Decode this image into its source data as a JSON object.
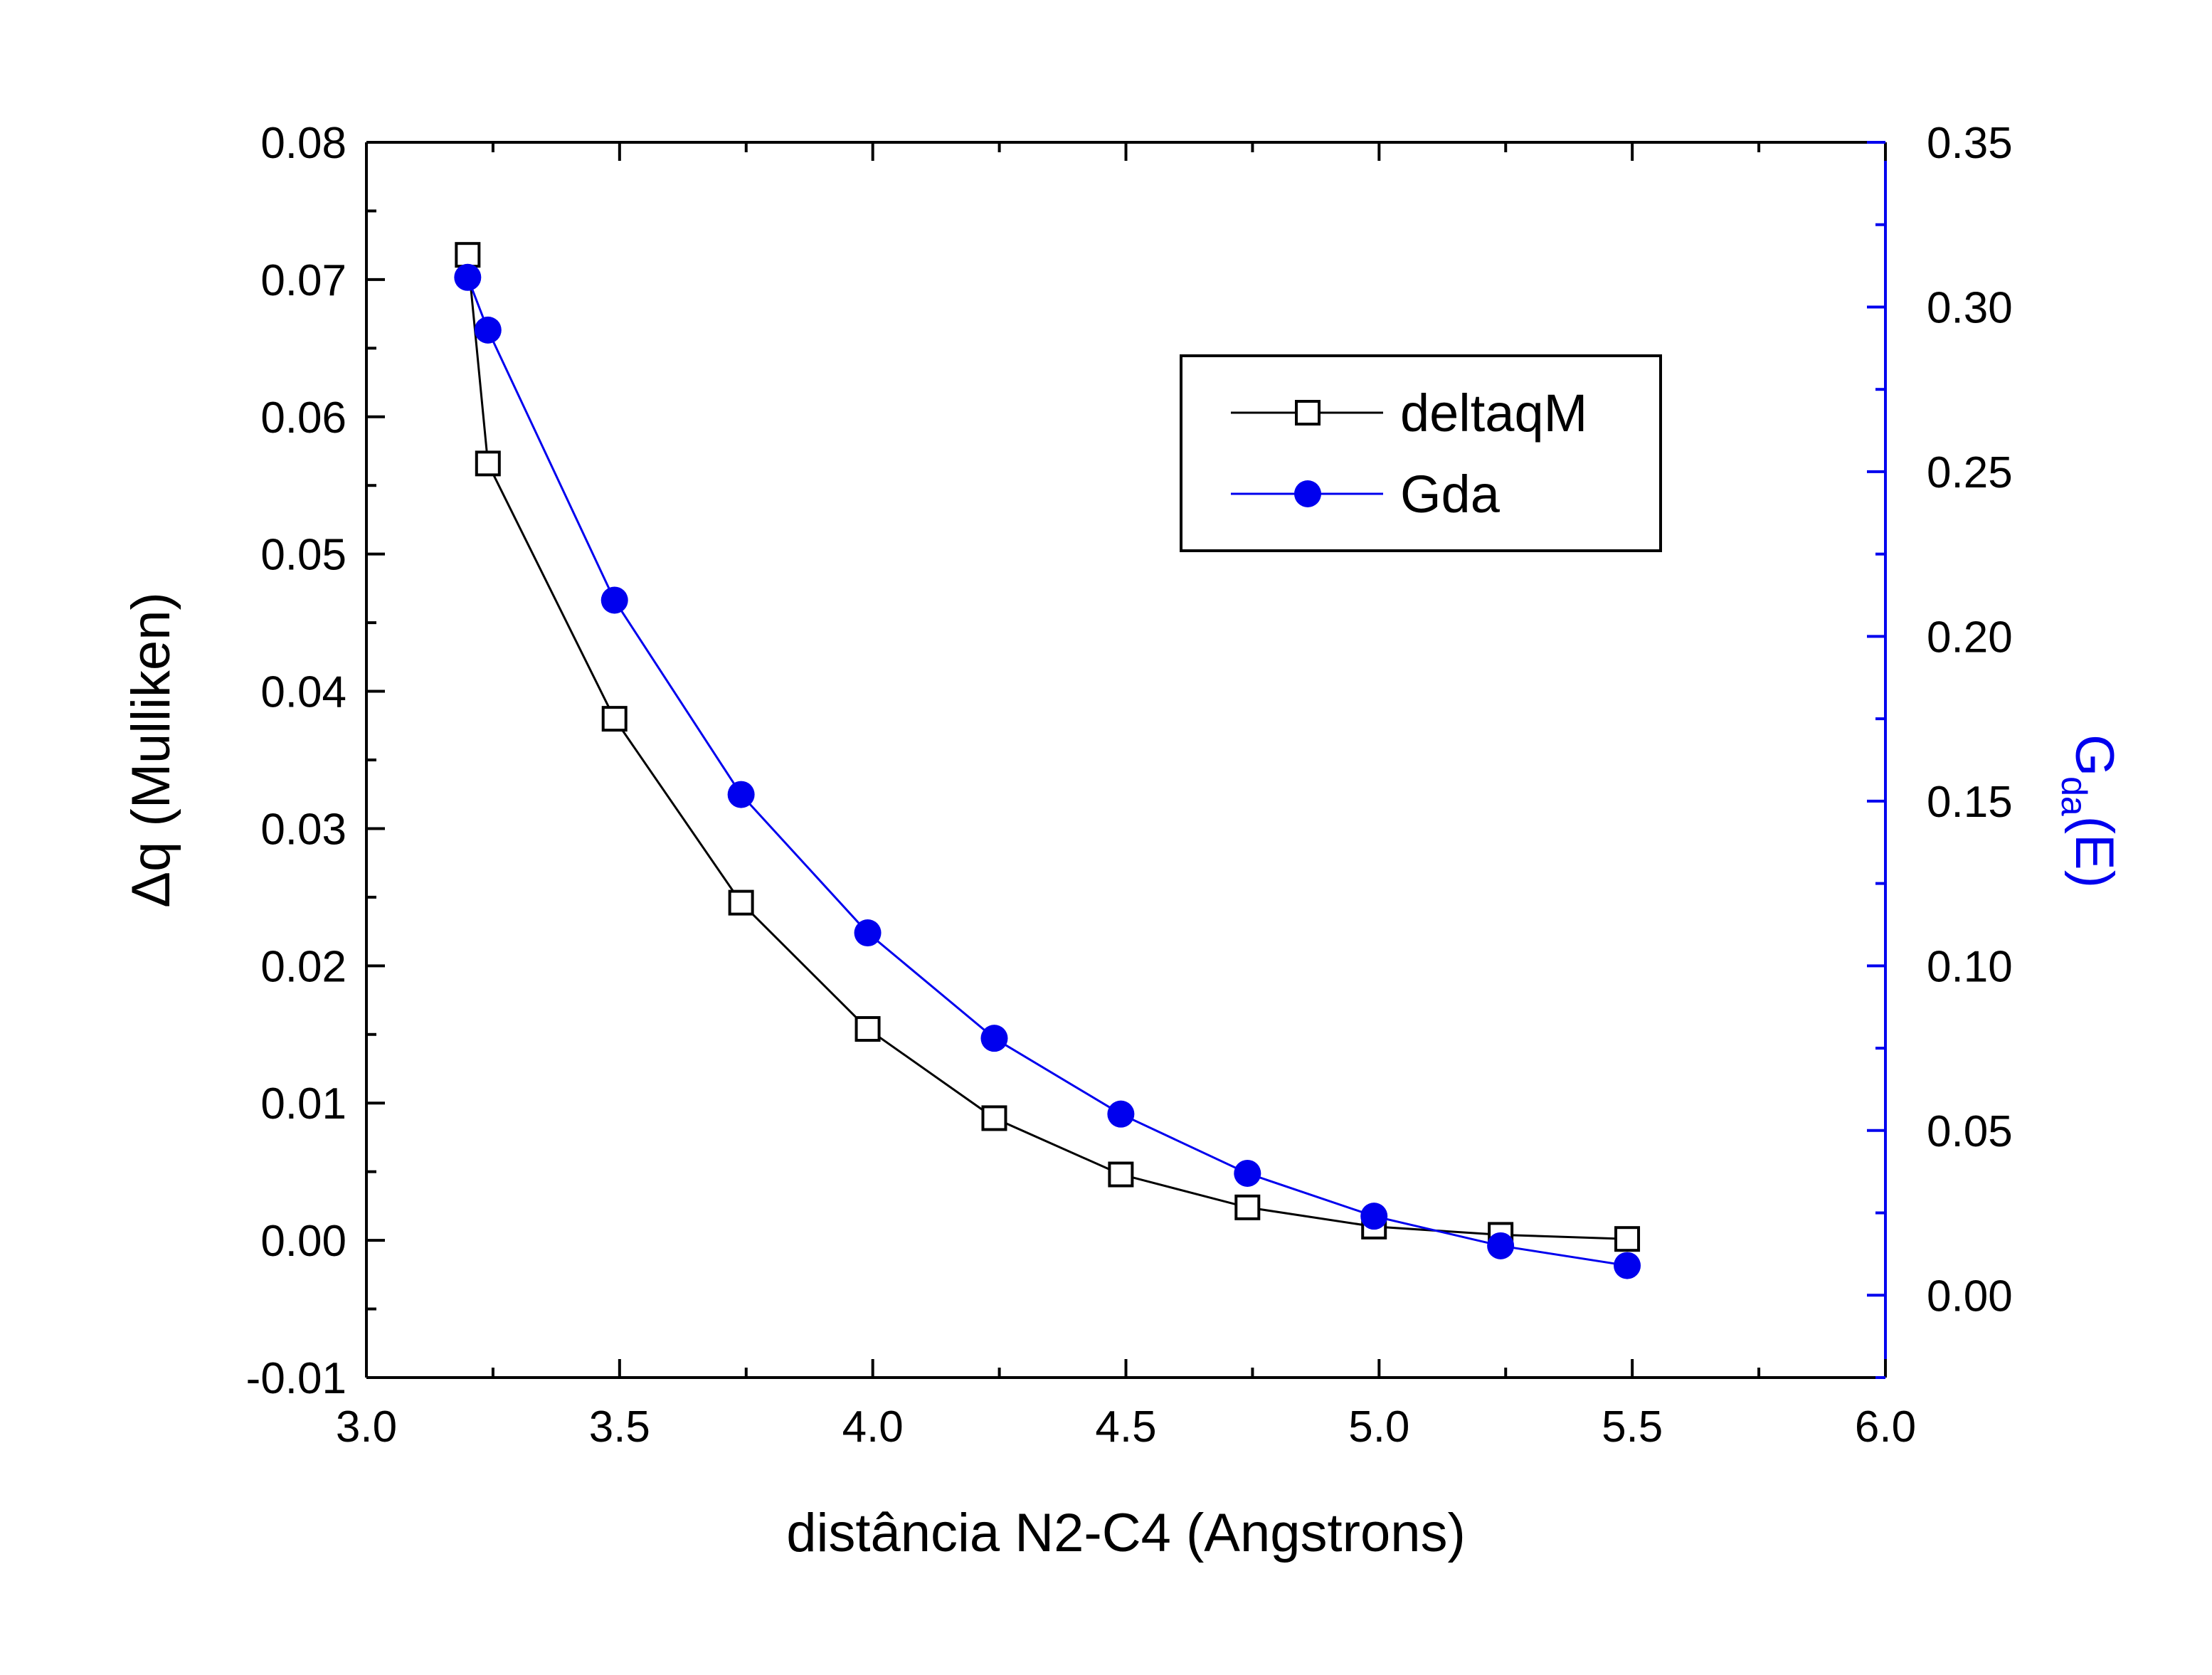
{
  "chart_data": {
    "type": "line",
    "xlabel": "distância N2-C4 (Angstrons)",
    "ylabel_left": "Δq (Mulliken)",
    "ylabel_right": {
      "main": "G",
      "sub": "da",
      "suffix": "(E)"
    },
    "xlim": [
      3.0,
      6.0
    ],
    "ylim_left": [
      -0.01,
      0.08
    ],
    "ylim_right": [
      -0.025,
      0.35
    ],
    "xticks": [
      "3.0",
      "3.5",
      "4.0",
      "4.5",
      "5.0",
      "5.5",
      "6.0"
    ],
    "yticks_left": [
      "-0.01",
      "0.00",
      "0.01",
      "0.02",
      "0.03",
      "0.04",
      "0.05",
      "0.06",
      "0.07",
      "0.08"
    ],
    "yticks_right": [
      "0.00",
      "0.05",
      "0.10",
      "0.15",
      "0.20",
      "0.25",
      "0.30",
      "0.35"
    ],
    "grid": false,
    "legend_position": "top-right",
    "series": [
      {
        "name": "deltaqM",
        "axis": "left",
        "color": "#000000",
        "marker": "open-square",
        "x": [
          3.2,
          3.24,
          3.49,
          3.74,
          3.99,
          4.24,
          4.49,
          4.74,
          4.99,
          5.24,
          5.49
        ],
        "y": [
          0.0718,
          0.0566,
          0.038,
          0.0246,
          0.0154,
          0.0089,
          0.0048,
          0.0024,
          0.001,
          0.0004,
          0.0001
        ]
      },
      {
        "name": "Gda",
        "axis": "right",
        "color": "#0000ee",
        "marker": "filled-circle",
        "x": [
          3.2,
          3.24,
          3.49,
          3.74,
          3.99,
          4.24,
          4.49,
          4.74,
          4.99,
          5.24,
          5.49
        ],
        "y": [
          0.309,
          0.293,
          0.211,
          0.152,
          0.11,
          0.078,
          0.055,
          0.037,
          0.024,
          0.015,
          0.009
        ]
      }
    ]
  }
}
